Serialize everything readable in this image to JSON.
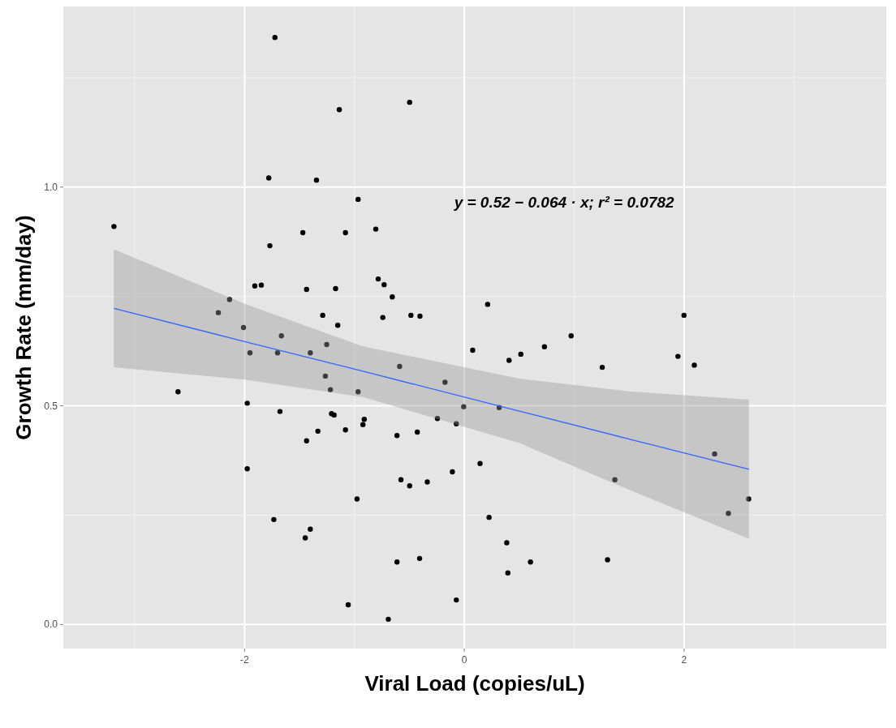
{
  "chart_data": {
    "type": "scatter",
    "xlabel": "Viral Load (copies/uL)",
    "ylabel": "Growth Rate (mm/day)",
    "xlim": [
      -3.65,
      3.84
    ],
    "ylim": [
      -0.055,
      1.413
    ],
    "xticks": [
      {
        "value": -2,
        "label": "-2"
      },
      {
        "value": 0,
        "label": "0"
      },
      {
        "value": 2,
        "label": "2"
      }
    ],
    "yticks": [
      {
        "value": 0,
        "label": "0.0"
      },
      {
        "value": 0.5,
        "label": "0.5"
      },
      {
        "value": 1,
        "label": "1.0"
      }
    ],
    "grid": true,
    "annotations": [
      "y = 0.52 − 0.064 · x;  r² = 0.0782"
    ],
    "series": [
      {
        "color": "#000000",
        "marker": "circle",
        "x": [
          -1.724,
          -1.138,
          -1.78,
          -1.346,
          -0.967,
          -3.189,
          -1.47,
          -1.082,
          -0.806,
          -1.77,
          -1.907,
          -1.848,
          -1.436,
          -1.172,
          -0.784,
          -0.73,
          -2.137,
          -2.239,
          -1.289,
          -1.152,
          -0.742,
          -2.01,
          -1.665,
          -1.253,
          -1.951,
          -1.7,
          -1.402,
          -1.265,
          -1.219,
          -0.967,
          -2.606,
          -1.976,
          -1.678,
          -1.209,
          -1.185,
          -0.911,
          -0.923,
          -1.333,
          -1.082,
          -1.436,
          -1.976,
          -0.977,
          -1.734,
          -1.402,
          -1.448,
          -1.057,
          -0.498,
          -0.656,
          -0.486,
          -0.404,
          0.212,
          1.999,
          0.972,
          0.729,
          0.514,
          0.407,
          0.076,
          1.255,
          1.944,
          2.093,
          -0.589,
          -0.176,
          -0.006,
          0.317,
          -0.245,
          -0.073,
          -0.613,
          -0.428,
          0.143,
          -0.109,
          -0.577,
          -0.498,
          -0.337,
          1.37,
          2.278,
          2.588,
          2.403,
          0.225,
          0.386,
          0.396,
          -0.613,
          -0.407,
          0.602,
          1.303,
          -0.073,
          -0.692
        ],
        "values": [
          1.342,
          1.177,
          1.021,
          1.016,
          0.972,
          0.91,
          0.896,
          0.896,
          0.904,
          0.866,
          0.774,
          0.776,
          0.766,
          0.768,
          0.79,
          0.777,
          0.743,
          0.713,
          0.707,
          0.684,
          0.702,
          0.679,
          0.66,
          0.64,
          0.621,
          0.621,
          0.621,
          0.568,
          0.537,
          0.532,
          0.532,
          0.506,
          0.487,
          0.482,
          0.479,
          0.469,
          0.457,
          0.442,
          0.445,
          0.42,
          0.356,
          0.287,
          0.24,
          0.218,
          0.198,
          0.045,
          1.194,
          0.749,
          0.707,
          0.705,
          0.732,
          0.707,
          0.66,
          0.635,
          0.618,
          0.604,
          0.627,
          0.588,
          0.613,
          0.593,
          0.59,
          0.554,
          0.498,
          0.496,
          0.471,
          0.459,
          0.432,
          0.44,
          0.368,
          0.349,
          0.331,
          0.317,
          0.326,
          0.331,
          0.39,
          0.287,
          0.254,
          0.245,
          0.187,
          0.118,
          0.143,
          0.151,
          0.143,
          0.148,
          0.056,
          0.012
        ]
      },
      {
        "type": "line",
        "color": "#3366ff",
        "marker": "none",
        "x": [
          -3.19,
          -2,
          -0.923,
          0.5,
          1.5,
          2.59
        ],
        "values": [
          0.723,
          0.647,
          0.579,
          0.488,
          0.424,
          0.355
        ],
        "lower": [
          0.588,
          0.56,
          0.52,
          0.415,
          0.308,
          0.196
        ],
        "upper": [
          0.858,
          0.733,
          0.636,
          0.562,
          0.533,
          0.514
        ]
      }
    ]
  }
}
